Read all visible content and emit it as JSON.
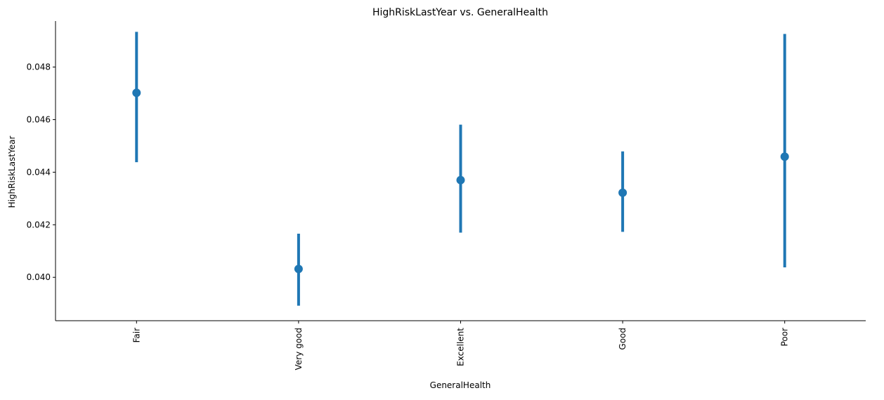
{
  "chart_data": {
    "type": "pointplot",
    "title": "HighRiskLastYear vs. GeneralHealth",
    "xlabel": "GeneralHealth",
    "ylabel": "HighRiskLastYear",
    "categories": [
      "Fair",
      "Very good",
      "Excellent",
      "Good",
      "Poor"
    ],
    "values": [
      0.04702,
      0.04032,
      0.0437,
      0.04322,
      0.04459
    ],
    "ci_low": [
      0.04438,
      0.03892,
      0.0417,
      0.04173,
      0.04038
    ],
    "ci_high": [
      0.04934,
      0.04166,
      0.04581,
      0.04479,
      0.04926
    ],
    "ylim": [
      0.03835,
      0.04975
    ],
    "yticks": [
      0.04,
      0.042,
      0.044,
      0.046,
      0.048
    ],
    "ytick_labels": [
      "0.040",
      "0.042",
      "0.044",
      "0.046",
      "0.048"
    ],
    "color": "#1f77b4",
    "grid": false,
    "legend": "none"
  }
}
